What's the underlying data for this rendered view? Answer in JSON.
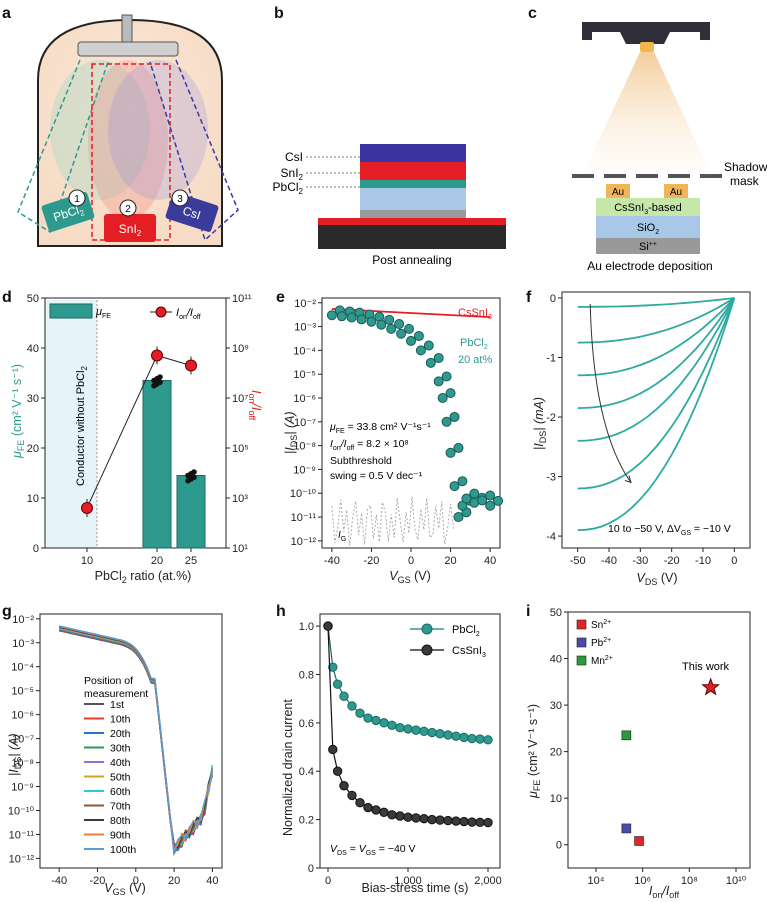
{
  "panels": {
    "a": {
      "label": "a",
      "sources": [
        {
          "num": "1",
          "name": "PbCl",
          "sub": "2"
        },
        {
          "num": "2",
          "name": "SnI",
          "sub": "2"
        },
        {
          "num": "3",
          "name": "CsI",
          "sub": ""
        }
      ]
    },
    "b": {
      "label": "b",
      "layers": [
        {
          "name": "CsI",
          "sub": ""
        },
        {
          "name": "SnI",
          "sub": "2"
        },
        {
          "name": "PbCl",
          "sub": "2"
        }
      ],
      "caption": "Post annealing"
    },
    "c": {
      "label": "c",
      "mask_label_1": "Shadow",
      "mask_label_2": "mask",
      "au_left": "Au",
      "au_right": "Au",
      "layer_1": "CsSnI",
      "layer_1_sub": "3",
      "layer_1_tail": "-based",
      "layer_2": "SiO",
      "layer_2_sub": "2",
      "layer_3": "Si",
      "layer_3_sup": "++",
      "caption": "Au electrode deposition"
    },
    "d": {
      "label": "d",
      "vertical_text": "Conductor without PbCl",
      "vertical_sub": "2",
      "legend_bar": "μ",
      "legend_bar_sub": "FE",
      "legend_dot": "I",
      "legend_dot_sub1": "on",
      "legend_dot_mid": "/I",
      "legend_dot_sub2": "off",
      "ylabel_left": "μ",
      "ylabel_left_sub": "FE",
      "ylabel_left_tail": " (cm² V⁻¹ s⁻¹)",
      "ylabel_right": "I",
      "ylabel_right_sub1": "on",
      "ylabel_right_mid": "/I",
      "ylabel_right_sub2": "off",
      "xlabel": "PbCl",
      "xlabel_sub": "2",
      "xlabel_tail": " ratio (at.%)"
    },
    "e": {
      "label": "e",
      "legend_1": "CsSnI",
      "legend_1_sub": "3",
      "legend_2_1": "PbCl",
      "legend_2_sub": "2",
      "legend_2_2": "20 at%",
      "annot_1": "μ",
      "annot_1_sub": "FE",
      "annot_1_tail": " = 33.8 cm² V⁻¹s⁻¹",
      "annot_2": "I",
      "annot_2_sub1": "on",
      "annot_2_mid": "/I",
      "annot_2_sub2": "off",
      "annot_2_tail": " = 8.2 × 10⁸",
      "annot_3": "Subthreshold",
      "annot_4": "swing = 0.5 V dec⁻¹",
      "ig": "I",
      "ig_sub": "G",
      "ylabel": "|I",
      "ylabel_sub": "DS",
      "ylabel_tail": "| (A)",
      "xlabel": "V",
      "xlabel_sub": "GS",
      "xlabel_tail": " (V)"
    },
    "f": {
      "label": "f",
      "annot": "10 to −50 V, ΔV",
      "annot_sub": "GS",
      "annot_tail": " = −10 V",
      "ylabel": "|I",
      "ylabel_sub": "DS",
      "ylabel_tail": "| (mA)",
      "xlabel": "V",
      "xlabel_sub": "DS",
      "xlabel_tail": " (V)"
    },
    "g": {
      "label": "g",
      "legend_title_1": "Position of",
      "legend_title_2": "measurement",
      "ylabel": "|I",
      "ylabel_sub": "DS",
      "ylabel_tail": "| (A)",
      "xlabel": "V",
      "xlabel_sub": "GS",
      "xlabel_tail": " (V)"
    },
    "h": {
      "label": "h",
      "legend_1": "PbCl",
      "legend_1_sub": "2",
      "legend_2": "CsSnI",
      "legend_2_sub": "3",
      "annot": "V",
      "annot_sub1": "DS",
      "annot_mid": " = V",
      "annot_sub2": "GS",
      "annot_tail": " = −40 V",
      "ylabel": "Normalized drain current",
      "xlabel": "Bias-stress time (s)"
    },
    "i": {
      "label": "i",
      "legend": [
        {
          "name": "Sn",
          "sup": "2+",
          "color": "#e0262a"
        },
        {
          "name": "Pb",
          "sup": "2+",
          "color": "#4a4aa8"
        },
        {
          "name": "Mn",
          "sup": "2+",
          "color": "#2a9a3a"
        }
      ],
      "this_work": "This work",
      "ylabel": "μ",
      "ylabel_sub": "FE",
      "ylabel_tail": " (cm² V⁻¹ s⁻¹)",
      "xlabel": "I",
      "xlabel_sub1": "on",
      "xlabel_mid": "/I",
      "xlabel_sub2": "off"
    }
  },
  "chart_data": [
    {
      "panel": "d",
      "type": "bar",
      "categories": [
        "10",
        "20",
        "25"
      ],
      "series": [
        {
          "name": "μFE",
          "values": [
            0,
            33.5,
            14.5
          ]
        },
        {
          "name": "Ion/Ioff",
          "values": [
            400,
            500000000,
            200000000
          ]
        }
      ],
      "ylim": [
        0,
        50
      ],
      "y2lim": [
        10,
        100000000000
      ],
      "yticks": [
        "0",
        "10",
        "20",
        "30",
        "40",
        "50"
      ],
      "y2ticks": [
        "10¹",
        "10³",
        "10⁵",
        "10⁷",
        "10⁹",
        "10¹¹"
      ]
    },
    {
      "panel": "e",
      "type": "scatter",
      "series": [
        {
          "name": "CsSnI3",
          "x": [
            -40,
            40
          ],
          "y": [
            0.0055,
            0.0025
          ]
        },
        {
          "name": "PbCl2 20 at%",
          "x": [
            -40,
            -35,
            -30,
            -25,
            -20,
            -15,
            -10,
            -5,
            0,
            5,
            10,
            14,
            16,
            18,
            20,
            22,
            24,
            26,
            28,
            32,
            36,
            40
          ],
          "y": [
            0.003,
            0.0027,
            0.0024,
            0.002,
            0.0016,
            0.0012,
            0.0008,
            0.0005,
            0.00025,
            0.0001,
            3e-05,
            5e-06,
            1e-06,
            1e-07,
            5e-09,
            2e-10,
            1e-11,
            3e-11,
            6e-11,
            4e-11,
            5e-11,
            3e-11
          ]
        }
      ],
      "xlim": [
        -45,
        45
      ],
      "xticks": [
        "-40",
        "-20",
        "0",
        "20",
        "40"
      ],
      "yticks": [
        "10⁻¹²",
        "10⁻¹¹",
        "10⁻¹⁰",
        "10⁻⁹",
        "10⁻⁸",
        "10⁻⁷",
        "10⁻⁶",
        "10⁻⁵",
        "10⁻⁴",
        "10⁻³",
        "10⁻²"
      ]
    },
    {
      "panel": "f",
      "type": "line",
      "xlim": [
        -55,
        5
      ],
      "ylim": [
        -4.2,
        0.1
      ],
      "xticks": [
        "-50",
        "-40",
        "-30",
        "-20",
        "-10",
        "0"
      ],
      "yticks": [
        "-4",
        "-3",
        "-2",
        "-1",
        "0"
      ],
      "series": [
        {
          "name": "10 V",
          "x": [
            -50,
            -25,
            0
          ],
          "y": [
            -0.15,
            -0.1,
            0
          ]
        },
        {
          "name": "0 V",
          "x": [
            -50,
            -25,
            0
          ],
          "y": [
            -0.75,
            -0.5,
            0
          ]
        },
        {
          "name": "-10 V",
          "x": [
            -50,
            -25,
            0
          ],
          "y": [
            -1.3,
            -0.9,
            0
          ]
        },
        {
          "name": "-20 V",
          "x": [
            -50,
            -25,
            0
          ],
          "y": [
            -1.85,
            -1.3,
            0
          ]
        },
        {
          "name": "-30 V",
          "x": [
            -50,
            -25,
            0
          ],
          "y": [
            -2.4,
            -1.7,
            0
          ]
        },
        {
          "name": "-40 V",
          "x": [
            -50,
            -25,
            0
          ],
          "y": [
            -3.2,
            -2.1,
            0
          ]
        },
        {
          "name": "-50 V",
          "x": [
            -50,
            -25,
            0
          ],
          "y": [
            -3.9,
            -2.6,
            0
          ]
        }
      ]
    },
    {
      "panel": "g",
      "type": "line",
      "xlim": [
        -50,
        45
      ],
      "xticks": [
        "-40",
        "-20",
        "0",
        "20",
        "40"
      ],
      "yticks": [
        "10⁻¹²",
        "10⁻¹¹",
        "10⁻¹⁰",
        "10⁻⁹",
        "10⁻⁸",
        "10⁻⁷",
        "10⁻⁶",
        "10⁻⁵",
        "10⁻⁴",
        "10⁻³",
        "10⁻²"
      ],
      "series": [
        {
          "name": "1st",
          "color": "#555555"
        },
        {
          "name": "10th",
          "color": "#e8382c"
        },
        {
          "name": "20th",
          "color": "#2a6fd6"
        },
        {
          "name": "30th",
          "color": "#2a9a5a"
        },
        {
          "name": "40th",
          "color": "#9a6ad6"
        },
        {
          "name": "50th",
          "color": "#d8a020"
        },
        {
          "name": "60th",
          "color": "#2ec8d8"
        },
        {
          "name": "70th",
          "color": "#8a5a3a"
        },
        {
          "name": "80th",
          "color": "#3a3a3a"
        },
        {
          "name": "90th",
          "color": "#f08030"
        },
        {
          "name": "100th",
          "color": "#5a9ad8"
        }
      ]
    },
    {
      "panel": "h",
      "type": "scatter",
      "xlim": [
        -100,
        2150
      ],
      "ylim": [
        0,
        1.05
      ],
      "xticks": [
        "0",
        "1,000",
        "2,000"
      ],
      "yticks": [
        "0",
        "0.2",
        "0.4",
        "0.6",
        "0.8",
        "1.0"
      ],
      "series": [
        {
          "name": "PbCl2",
          "x": [
            0,
            60,
            120,
            200,
            300,
            400,
            500,
            600,
            700,
            800,
            900,
            1000,
            1100,
            1200,
            1300,
            1400,
            1500,
            1600,
            1700,
            1800,
            1900,
            2000
          ],
          "y": [
            1.0,
            0.83,
            0.76,
            0.71,
            0.67,
            0.64,
            0.62,
            0.61,
            0.6,
            0.59,
            0.58,
            0.575,
            0.57,
            0.565,
            0.56,
            0.555,
            0.55,
            0.545,
            0.54,
            0.535,
            0.533,
            0.53
          ]
        },
        {
          "name": "CsSnI3",
          "x": [
            0,
            60,
            120,
            200,
            300,
            400,
            500,
            600,
            700,
            800,
            900,
            1000,
            1100,
            1200,
            1300,
            1400,
            1500,
            1600,
            1700,
            1800,
            1900,
            2000
          ],
          "y": [
            1.0,
            0.49,
            0.4,
            0.34,
            0.3,
            0.27,
            0.25,
            0.24,
            0.23,
            0.22,
            0.215,
            0.21,
            0.207,
            0.204,
            0.2,
            0.198,
            0.196,
            0.194,
            0.192,
            0.19,
            0.189,
            0.188
          ]
        }
      ]
    },
    {
      "panel": "i",
      "type": "scatter",
      "ylim": [
        -5,
        50
      ],
      "yticks": [
        "0",
        "10",
        "20",
        "30",
        "40",
        "50"
      ],
      "xticks": [
        "10⁴",
        "10⁶",
        "10⁸",
        "10¹⁰"
      ],
      "series": [
        {
          "name": "Sn2+",
          "x": [
            700000
          ],
          "y": [
            0.8
          ]
        },
        {
          "name": "Pb2+",
          "x": [
            200000
          ],
          "y": [
            3.5
          ]
        },
        {
          "name": "Mn2+",
          "x": [
            200000
          ],
          "y": [
            23.5
          ]
        },
        {
          "name": "This work",
          "x": [
            820000000
          ],
          "y": [
            33.8
          ]
        }
      ]
    }
  ]
}
